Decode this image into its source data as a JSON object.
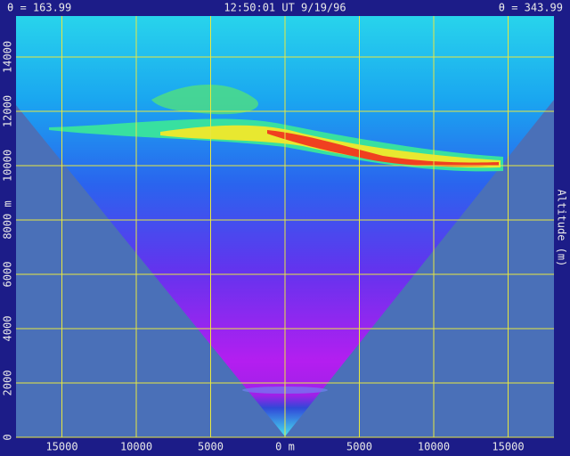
{
  "chart_data": {
    "type": "image",
    "title_left": "θ = 163.99",
    "title": "12:50:01 UT  9/19/96",
    "title_right": "θ = 343.99",
    "ylabel": "Altitude (m)",
    "xlim": [
      -18084,
      18084
    ],
    "ylim": [
      0,
      15508
    ],
    "xticks": [
      {
        "value": -15000,
        "label": "15000"
      },
      {
        "value": -10000,
        "label": "10000"
      },
      {
        "value": -5000,
        "label": "5000"
      },
      {
        "value": 0,
        "label": "0 m"
      },
      5000,
      10000,
      15000
    ],
    "yticks": [
      0,
      2000,
      4000,
      6000,
      {
        "value": 8000,
        "label": "8000 m"
      },
      10000,
      12000,
      14000
    ],
    "grid": true,
    "grid_color": "#e8e840"
  }
}
